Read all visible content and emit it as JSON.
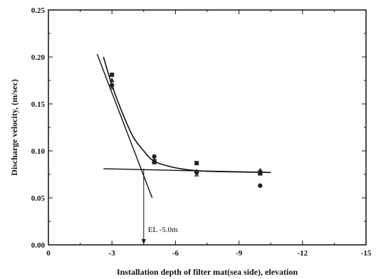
{
  "chart_data": {
    "type": "scatter",
    "xlabel": "Installation depth of filter mat(sea side), elevation",
    "ylabel": "Discharge velocity, (m/sec)",
    "xlim": [
      0,
      -15
    ],
    "ylim": [
      0,
      0.25
    ],
    "x_ticks": [
      0,
      -3,
      -6,
      -9,
      -12,
      -15
    ],
    "y_ticks": [
      0.0,
      0.05,
      0.1,
      0.15,
      0.2,
      0.25
    ],
    "x_tick_labels": [
      "0",
      "-3",
      "-6",
      "-9",
      "-12",
      "-15"
    ],
    "y_tick_labels": [
      "0.00",
      "0.05",
      "0.10",
      "0.15",
      "0.20",
      "0.25"
    ],
    "grid": false,
    "legend": "none",
    "series": [
      {
        "marker": "square",
        "points": [
          [
            -3,
            0.181
          ],
          [
            -5,
            0.088
          ],
          [
            -7,
            0.087
          ],
          [
            -10,
            0.076
          ]
        ]
      },
      {
        "marker": "circle",
        "points": [
          [
            -3,
            0.17
          ],
          [
            -5,
            0.094
          ],
          [
            -7,
            0.077
          ],
          [
            -10,
            0.063
          ]
        ]
      },
      {
        "marker": "triangle",
        "points": [
          [
            -3,
            0.175
          ],
          [
            -5,
            0.09
          ],
          [
            -7,
            0.078
          ],
          [
            -10,
            0.079
          ]
        ]
      },
      {
        "marker": "cross",
        "points": [
          [
            -3,
            0.168
          ],
          [
            -5,
            0.089
          ],
          [
            -7,
            0.075
          ],
          [
            -10,
            0.077
          ]
        ]
      }
    ],
    "fit_curve": [
      [
        -2.6,
        0.2
      ],
      [
        -3,
        0.17
      ],
      [
        -3.5,
        0.14
      ],
      [
        -4,
        0.115
      ],
      [
        -4.5,
        0.1
      ],
      [
        -5,
        0.089
      ],
      [
        -6,
        0.082
      ],
      [
        -7,
        0.079
      ],
      [
        -8,
        0.078
      ],
      [
        -10.5,
        0.077
      ]
    ],
    "tangent_line": [
      [
        -2.3,
        0.203
      ],
      [
        -4.9,
        0.05
      ]
    ],
    "asymptote_line": [
      [
        -2.6,
        0.081
      ],
      [
        -10.5,
        0.077
      ]
    ],
    "annotation": {
      "text": "EL -5.0m",
      "x": -4.5,
      "y": 0.081
    },
    "colors": {
      "axis": "#111111",
      "marker": "#222222",
      "line": "#111111"
    }
  }
}
